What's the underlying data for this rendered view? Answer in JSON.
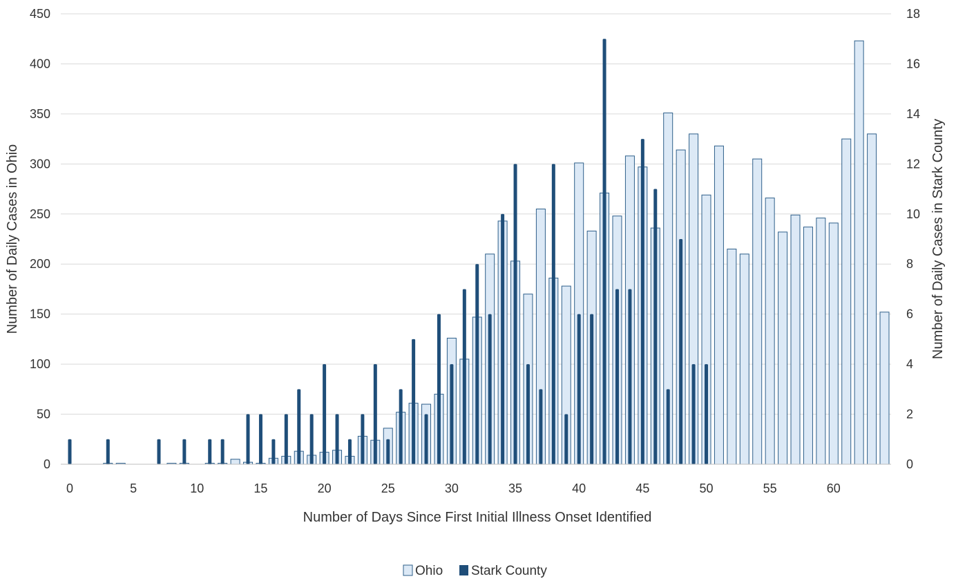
{
  "chart_data": {
    "type": "bar",
    "title": "",
    "xlabel": "Number of Days Since First Initial Illness Onset Identified",
    "ylabel": "Number of Daily Cases in Ohio",
    "y2label": "Number of Daily Cases in Stark County",
    "xlim": [
      0,
      64
    ],
    "ylim": [
      0,
      450
    ],
    "y2lim": [
      0,
      18
    ],
    "xticks": [
      0,
      5,
      10,
      15,
      20,
      25,
      30,
      35,
      40,
      45,
      50,
      55,
      60
    ],
    "yticks": [
      0,
      50,
      100,
      150,
      200,
      250,
      300,
      350,
      400,
      450
    ],
    "y2ticks": [
      0,
      2,
      4,
      6,
      8,
      10,
      12,
      14,
      16,
      18
    ],
    "grid": true,
    "legend_position": "bottom",
    "x": [
      0,
      1,
      2,
      3,
      4,
      5,
      6,
      7,
      8,
      9,
      10,
      11,
      12,
      13,
      14,
      15,
      16,
      17,
      18,
      19,
      20,
      21,
      22,
      23,
      24,
      25,
      26,
      27,
      28,
      29,
      30,
      31,
      32,
      33,
      34,
      35,
      36,
      37,
      38,
      39,
      40,
      41,
      42,
      43,
      44,
      45,
      46,
      47,
      48,
      49,
      50,
      51,
      52,
      53,
      54,
      55,
      56,
      57,
      58,
      59,
      60,
      61,
      62,
      63,
      64
    ],
    "series": [
      {
        "name": "Ohio",
        "axis": "left",
        "color": "#dce9f6",
        "edge_color": "#2e5f8a",
        "values": [
          0,
          0,
          0,
          1,
          1,
          0,
          0,
          0,
          1,
          1,
          0,
          1,
          1,
          5,
          2,
          1,
          6,
          8,
          13,
          9,
          12,
          14,
          8,
          28,
          24,
          36,
          52,
          61,
          60,
          70,
          126,
          105,
          147,
          210,
          243,
          203,
          170,
          255,
          186,
          178,
          301,
          233,
          271,
          248,
          308,
          297,
          236,
          351,
          314,
          330,
          269,
          318,
          215,
          210,
          305,
          266,
          232,
          249,
          237,
          246,
          241,
          325,
          423,
          330,
          152
        ]
      },
      {
        "name": "Stark County",
        "axis": "right",
        "color": "#1f4e79",
        "values": [
          1,
          0,
          0,
          1,
          0,
          0,
          0,
          1,
          0,
          1,
          0,
          1,
          1,
          0,
          2,
          2,
          1,
          2,
          3,
          2,
          4,
          2,
          1,
          2,
          4,
          1,
          3,
          5,
          2,
          6,
          4,
          7,
          8,
          6,
          10,
          12,
          4,
          3,
          12,
          2,
          6,
          6,
          17,
          7,
          7,
          13,
          11,
          3,
          9,
          4,
          4,
          0,
          0,
          0,
          0,
          0,
          0,
          0,
          0,
          0,
          0,
          0,
          0,
          0,
          0
        ]
      }
    ]
  }
}
